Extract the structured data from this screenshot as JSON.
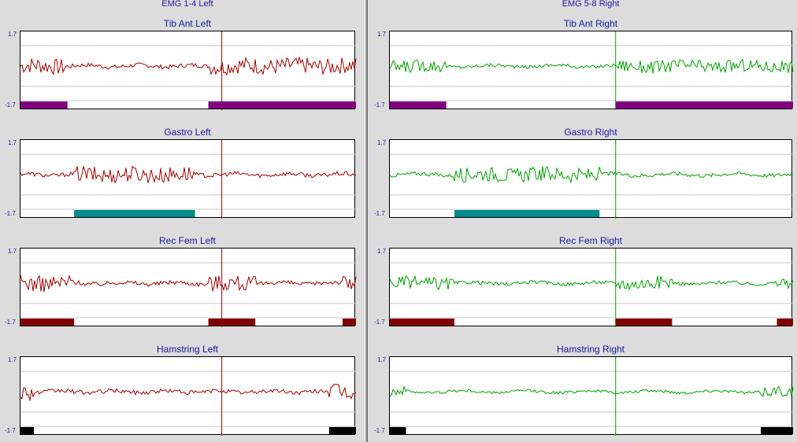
{
  "header_left": "EMG 1-4 Left",
  "header_right": "EMG 5-8 Right",
  "chart_data": [
    {
      "type": "line",
      "title": "Tib Ant Left",
      "ymax": "1.7",
      "ymin": "-1.7",
      "ylim": [
        -1.7,
        1.7
      ],
      "color": "#a00000",
      "marker_x": 0.6,
      "on_color": "#800080",
      "on_periods": [
        [
          0,
          0.14
        ],
        [
          0.56,
          1
        ]
      ],
      "amplitude": 0.9
    },
    {
      "type": "line",
      "title": "Gastro Left",
      "ymax": "1.7",
      "ymin": "-1.7",
      "ylim": [
        -1.7,
        1.7
      ],
      "color": "#a00000",
      "marker_x": 0.6,
      "on_color": "#008b8b",
      "on_periods": [
        [
          0.16,
          0.52
        ]
      ],
      "amplitude": 0.9
    },
    {
      "type": "line",
      "title": "Rec Fem Left",
      "ymax": "1.7",
      "ymin": "-1.7",
      "ylim": [
        -1.7,
        1.7
      ],
      "color": "#a00000",
      "marker_x": 0.6,
      "on_color": "#800000",
      "on_periods": [
        [
          0,
          0.16
        ],
        [
          0.56,
          0.7
        ],
        [
          0.96,
          1
        ]
      ],
      "amplitude": 0.9
    },
    {
      "type": "line",
      "title": "Hamstring Left",
      "ymax": "1.7",
      "ymin": "-1.7",
      "ylim": [
        -1.7,
        1.7
      ],
      "color": "#a00000",
      "marker_x": 0.6,
      "on_color": "#000000",
      "on_periods": [
        [
          0,
          0.04
        ],
        [
          0.92,
          1
        ]
      ],
      "amplitude": 0.9
    },
    {
      "type": "line",
      "title": "Tib Ant Right",
      "ymax": "1.7",
      "ymin": "-1.7",
      "ylim": [
        -1.7,
        1.7
      ],
      "color": "#00a000",
      "marker_x": 0.56,
      "on_color": "#800080",
      "on_periods": [
        [
          0,
          0.14
        ],
        [
          0.56,
          1
        ]
      ],
      "amplitude": 0.7
    },
    {
      "type": "line",
      "title": "Gastro Right",
      "ymax": "1.7",
      "ymin": "-1.7",
      "ylim": [
        -1.7,
        1.7
      ],
      "color": "#00a000",
      "marker_x": 0.56,
      "on_color": "#008b8b",
      "on_periods": [
        [
          0.16,
          0.52
        ]
      ],
      "amplitude": 0.8
    },
    {
      "type": "line",
      "title": "Rec Fem Right",
      "ymax": "1.7",
      "ymin": "-1.7",
      "ylim": [
        -1.7,
        1.7
      ],
      "color": "#00a000",
      "marker_x": 0.56,
      "on_color": "#800000",
      "on_periods": [
        [
          0,
          0.16
        ],
        [
          0.56,
          0.7
        ],
        [
          0.96,
          1
        ]
      ],
      "amplitude": 0.7
    },
    {
      "type": "line",
      "title": "Hamstring Right",
      "ymax": "1.7",
      "ymin": "-1.7",
      "ylim": [
        -1.7,
        1.7
      ],
      "color": "#00a000",
      "marker_x": 0.56,
      "on_color": "#000000",
      "on_periods": [
        [
          0,
          0.04
        ],
        [
          0.92,
          1
        ]
      ],
      "amplitude": 0.6
    }
  ]
}
